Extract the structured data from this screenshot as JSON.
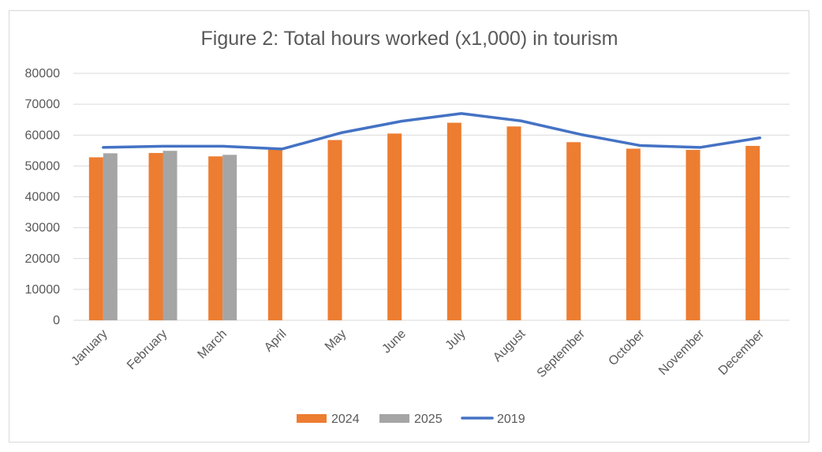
{
  "chart_data": {
    "type": "bar",
    "title": "Figure 2: Total hours worked (x1,000) in tourism",
    "xlabel": "",
    "ylabel": "",
    "ylim": [
      0,
      80000
    ],
    "yticks": [
      "0",
      "10000",
      "20000",
      "30000",
      "40000",
      "50000",
      "60000",
      "70000",
      "80000"
    ],
    "grid": true,
    "legend_position": "bottom",
    "categories": [
      "January",
      "February",
      "March",
      "April",
      "May",
      "June",
      "July",
      "August",
      "September",
      "October",
      "November",
      "December"
    ],
    "series": [
      {
        "name": "2024",
        "kind": "bar",
        "color": "#ed7d31",
        "values": [
          52800,
          54200,
          53100,
          55300,
          58400,
          60500,
          64000,
          62800,
          57700,
          55600,
          55200,
          56500
        ]
      },
      {
        "name": "2025",
        "kind": "bar",
        "color": "#a5a5a5",
        "values": [
          54100,
          54900,
          53600,
          null,
          null,
          null,
          null,
          null,
          null,
          null,
          null,
          null
        ]
      },
      {
        "name": "2019",
        "kind": "line",
        "color": "#4472c4",
        "values": [
          56000,
          56400,
          56400,
          55500,
          60800,
          64500,
          67000,
          64600,
          60200,
          56600,
          56000,
          59100
        ]
      }
    ]
  }
}
